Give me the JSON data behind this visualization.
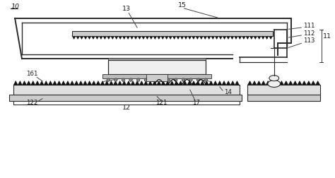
{
  "bg_color": "#ffffff",
  "line_color": "#2a2a2a",
  "dark_color": "#111111",
  "fig_width": 4.74,
  "fig_height": 2.53,
  "dpi": 100
}
